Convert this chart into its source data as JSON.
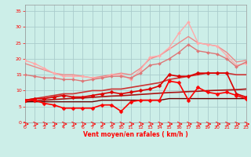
{
  "title": "",
  "xlabel": "Vent moyen/en rafales ( km/h )",
  "ylabel": "",
  "bg_color": "#cceee8",
  "grid_color": "#aacccc",
  "x": [
    0,
    1,
    2,
    3,
    4,
    5,
    6,
    7,
    8,
    9,
    10,
    11,
    12,
    13,
    14,
    15,
    16,
    17,
    18,
    19,
    20,
    21,
    22,
    23
  ],
  "lines": [
    {
      "y": [
        19.5,
        18.5,
        17.0,
        15.5,
        14.5,
        14.5,
        14.5,
        14.0,
        14.0,
        15.0,
        15.0,
        13.5,
        16.5,
        20.5,
        21.0,
        23.5,
        28.0,
        31.5,
        25.0,
        24.5,
        24.0,
        21.0,
        18.0,
        18.5
      ],
      "color": "#ffaaaa",
      "lw": 1.0,
      "marker": "D",
      "ms": 2.0
    },
    {
      "y": [
        18.5,
        17.5,
        16.5,
        15.5,
        15.0,
        15.0,
        14.5,
        14.0,
        14.5,
        15.0,
        15.5,
        15.0,
        17.0,
        20.0,
        21.0,
        23.0,
        25.0,
        27.0,
        25.0,
        24.5,
        24.0,
        22.0,
        19.0,
        19.5
      ],
      "color": "#ee8888",
      "lw": 1.0,
      "marker": null,
      "ms": 0
    },
    {
      "y": [
        15.0,
        14.5,
        14.0,
        14.0,
        13.5,
        13.5,
        13.0,
        13.5,
        14.0,
        14.5,
        14.5,
        14.0,
        15.5,
        18.0,
        18.5,
        20.0,
        22.0,
        24.5,
        22.5,
        22.0,
        21.5,
        20.0,
        17.5,
        19.0
      ],
      "color": "#dd7777",
      "lw": 1.0,
      "marker": "D",
      "ms": 2.0
    },
    {
      "y": [
        7.0,
        7.5,
        8.0,
        8.5,
        9.0,
        9.0,
        9.5,
        10.0,
        10.0,
        10.5,
        10.5,
        11.0,
        11.5,
        12.0,
        12.5,
        13.5,
        14.0,
        14.5,
        15.0,
        15.5,
        15.5,
        15.5,
        15.0,
        15.0
      ],
      "color": "#cc3333",
      "lw": 1.2,
      "marker": null,
      "ms": 0
    },
    {
      "y": [
        7.0,
        7.5,
        7.5,
        8.0,
        8.5,
        8.0,
        8.0,
        8.5,
        9.0,
        9.5,
        9.0,
        9.5,
        10.0,
        10.5,
        11.5,
        15.0,
        14.5,
        14.5,
        15.5,
        15.5,
        15.5,
        15.5,
        9.0,
        8.0
      ],
      "color": "#dd0000",
      "lw": 1.2,
      "marker": "D",
      "ms": 2.5
    },
    {
      "y": [
        7.0,
        7.0,
        6.0,
        5.5,
        4.5,
        4.5,
        4.5,
        4.5,
        5.5,
        5.5,
        3.5,
        6.5,
        7.0,
        7.0,
        7.0,
        13.0,
        12.5,
        7.0,
        11.0,
        9.5,
        9.0,
        9.5,
        8.5,
        7.5
      ],
      "color": "#ff0000",
      "lw": 1.2,
      "marker": "D",
      "ms": 2.5
    },
    {
      "y": [
        6.5,
        6.8,
        7.0,
        7.2,
        7.4,
        7.6,
        7.7,
        7.9,
        8.1,
        8.3,
        8.4,
        8.6,
        8.8,
        9.0,
        9.2,
        9.4,
        9.5,
        9.7,
        9.8,
        10.0,
        10.1,
        10.2,
        10.3,
        10.5
      ],
      "color": "#aa1111",
      "lw": 1.2,
      "marker": null,
      "ms": 0
    },
    {
      "y": [
        6.5,
        6.5,
        6.5,
        6.5,
        6.5,
        6.5,
        6.5,
        6.5,
        7.0,
        7.0,
        7.0,
        7.0,
        7.0,
        7.0,
        7.0,
        7.5,
        7.5,
        7.5,
        7.5,
        7.5,
        7.5,
        7.5,
        7.5,
        7.5
      ],
      "color": "#660000",
      "lw": 1.0,
      "marker": null,
      "ms": 0
    }
  ],
  "xlim": [
    0,
    23
  ],
  "ylim": [
    0,
    37
  ],
  "yticks": [
    0,
    5,
    10,
    15,
    20,
    25,
    30,
    35
  ],
  "xticks": [
    0,
    1,
    2,
    3,
    4,
    5,
    6,
    7,
    8,
    9,
    10,
    11,
    12,
    13,
    14,
    15,
    16,
    17,
    18,
    19,
    20,
    21,
    22,
    23
  ]
}
